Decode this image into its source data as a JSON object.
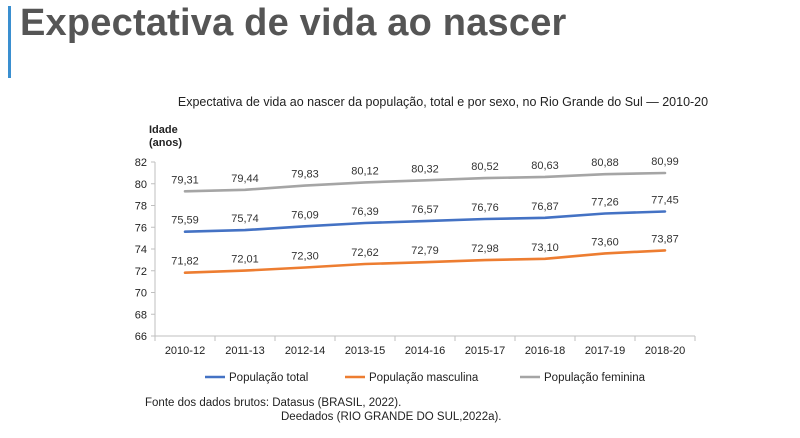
{
  "slide": {
    "title": "Expectativa de vida ao nascer"
  },
  "source": {
    "line1": "Fonte dos dados brutos: Datasus (BRASIL, 2022).",
    "line2": "Deedados (RIO GRANDE DO SUL,2022a)."
  },
  "chart_data": {
    "type": "line",
    "title": "Expectativa de vida ao nascer da população, total e por sexo, no Rio Grande do Sul — 2010-20",
    "ylabel": "Idade (anos)",
    "xlabel": "",
    "ylim": [
      66,
      82
    ],
    "yticks": [
      66,
      68,
      70,
      72,
      74,
      76,
      78,
      80,
      82
    ],
    "grid": false,
    "legend_position": "bottom",
    "categories": [
      "2010-12",
      "2011-13",
      "2012-14",
      "2013-15",
      "2014-16",
      "2015-17",
      "2016-18",
      "2017-19",
      "2018-20"
    ],
    "series": [
      {
        "name": "População total",
        "color": "#4472c4",
        "values": [
          75.59,
          75.74,
          76.09,
          76.39,
          76.57,
          76.76,
          76.87,
          77.26,
          77.45
        ],
        "labels": [
          "75,59",
          "75,74",
          "76,09",
          "76,39",
          "76,57",
          "76,76",
          "76,87",
          "77,26",
          "77,45"
        ]
      },
      {
        "name": "População masculina",
        "color": "#ed7d31",
        "values": [
          71.82,
          72.01,
          72.3,
          72.62,
          72.79,
          72.98,
          73.1,
          73.6,
          73.87
        ],
        "labels": [
          "71,82",
          "72,01",
          "72,30",
          "72,62",
          "72,79",
          "72,98",
          "73,10",
          "73,60",
          "73,87"
        ]
      },
      {
        "name": "População feminina",
        "color": "#a5a5a5",
        "values": [
          79.31,
          79.44,
          79.83,
          80.12,
          80.32,
          80.52,
          80.63,
          80.88,
          80.99
        ],
        "labels": [
          "79,31",
          "79,44",
          "79,83",
          "80,12",
          "80,32",
          "80,52",
          "80,63",
          "80,88",
          "80,99"
        ]
      }
    ]
  }
}
